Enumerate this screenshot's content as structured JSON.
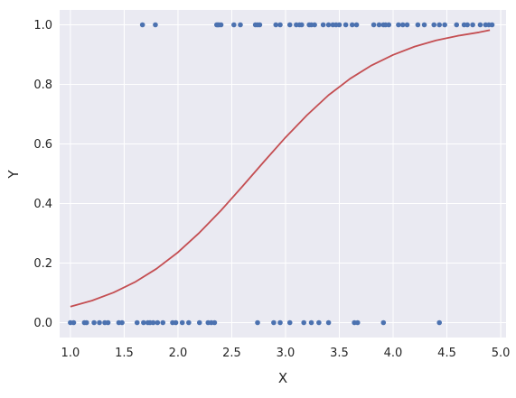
{
  "chart_data": {
    "type": "scatter",
    "title": "",
    "xlabel": "X",
    "ylabel": "Y",
    "xlim": [
      0.9,
      5.05
    ],
    "ylim": [
      -0.05,
      1.05
    ],
    "x_ticks": [
      1.0,
      1.5,
      2.0,
      2.5,
      3.0,
      3.5,
      4.0,
      4.5,
      5.0
    ],
    "x_tick_labels": [
      "1.0",
      "1.5",
      "2.0",
      "2.5",
      "3.0",
      "3.5",
      "4.0",
      "4.5",
      "5.0"
    ],
    "y_ticks": [
      0.0,
      0.2,
      0.4,
      0.6,
      0.8,
      1.0
    ],
    "y_tick_labels": [
      "0.0",
      "0.2",
      "0.4",
      "0.6",
      "0.8",
      "1.0"
    ],
    "grid": true,
    "colors": {
      "background": "#eaeaf2",
      "grid": "#ffffff",
      "points": "#4c72b0",
      "curve": "#c44e52"
    },
    "series": [
      {
        "type": "scatter",
        "points_y0": [
          1.0,
          1.03,
          1.13,
          1.15,
          1.22,
          1.27,
          1.32,
          1.35,
          1.45,
          1.48,
          1.62,
          1.68,
          1.72,
          1.74,
          1.77,
          1.81,
          1.86,
          1.95,
          1.98,
          2.04,
          2.1,
          2.2,
          2.28,
          2.31,
          2.34,
          2.74,
          2.89,
          2.95,
          3.04,
          3.17,
          3.24,
          3.31,
          3.4,
          3.64,
          3.67,
          3.91,
          4.43
        ],
        "points_y1": [
          1.67,
          1.79,
          2.36,
          2.37,
          2.38,
          2.4,
          2.52,
          2.58,
          2.72,
          2.74,
          2.76,
          2.91,
          2.95,
          3.04,
          3.1,
          3.13,
          3.15,
          3.22,
          3.24,
          3.27,
          3.35,
          3.4,
          3.44,
          3.47,
          3.5,
          3.56,
          3.62,
          3.66,
          3.82,
          3.87,
          3.91,
          3.93,
          3.96,
          4.05,
          4.09,
          4.13,
          4.23,
          4.29,
          4.38,
          4.43,
          4.48,
          4.59,
          4.66,
          4.69,
          4.74,
          4.81,
          4.86,
          4.89,
          4.92
        ]
      },
      {
        "type": "line",
        "x": [
          1.0,
          1.2,
          1.4,
          1.6,
          1.8,
          2.0,
          2.2,
          2.4,
          2.6,
          2.8,
          3.0,
          3.2,
          3.4,
          3.6,
          3.8,
          4.0,
          4.2,
          4.4,
          4.6,
          4.8,
          4.9
        ],
        "y": [
          0.054,
          0.074,
          0.101,
          0.136,
          0.181,
          0.236,
          0.302,
          0.377,
          0.458,
          0.541,
          0.622,
          0.697,
          0.764,
          0.819,
          0.864,
          0.899,
          0.927,
          0.948,
          0.963,
          0.975,
          0.982
        ]
      }
    ]
  }
}
